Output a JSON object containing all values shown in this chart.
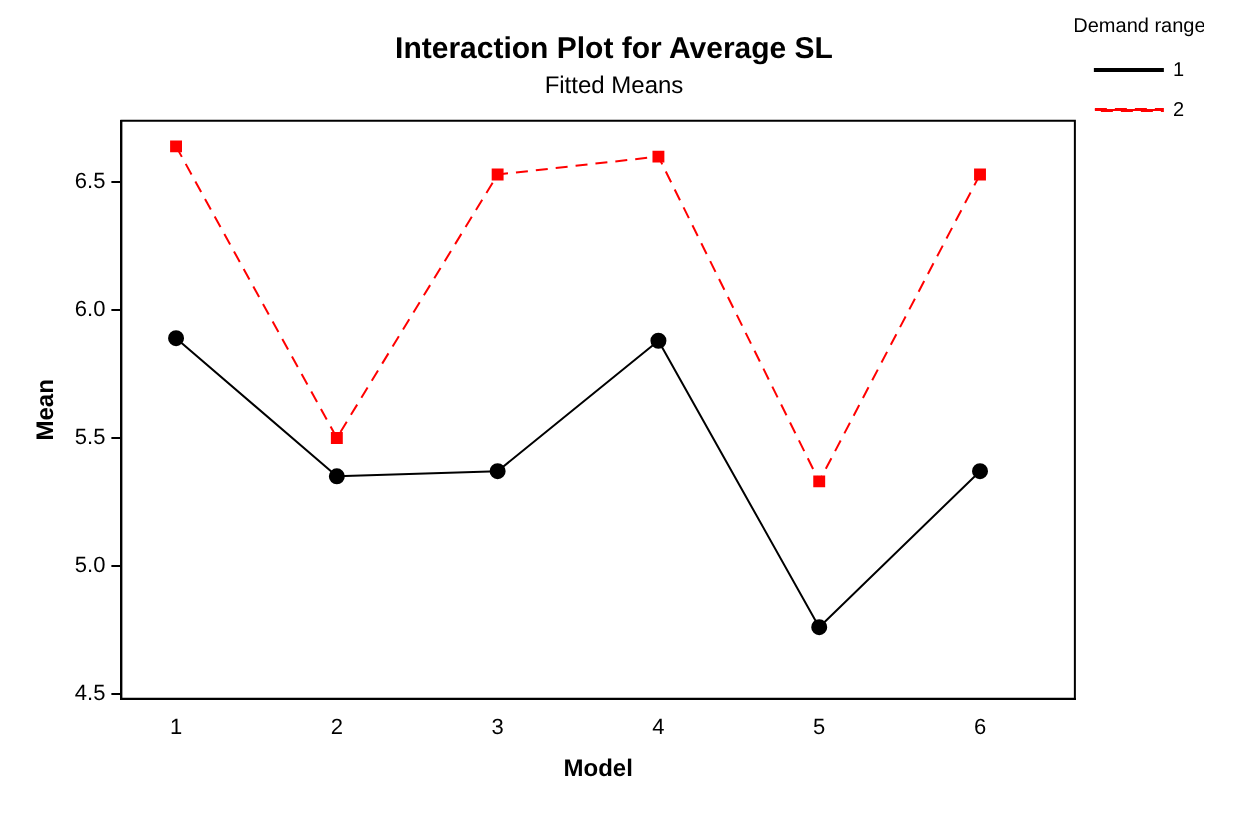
{
  "chart_data": {
    "type": "line",
    "title": "Interaction Plot for Average SL",
    "subtitle": "Fitted Means",
    "xlabel": "Model",
    "ylabel": "Mean",
    "legend_title": "Demand range",
    "x": [
      1,
      2,
      3,
      4,
      5,
      6
    ],
    "series": [
      {
        "name": "1",
        "color": "#000000",
        "marker": "circle",
        "line_style": "solid",
        "values": [
          5.89,
          5.35,
          5.37,
          5.88,
          4.76,
          5.37
        ]
      },
      {
        "name": "2",
        "color": "#ff0000",
        "marker": "square",
        "line_style": "dashed",
        "values": [
          6.64,
          5.5,
          6.53,
          6.6,
          5.33,
          6.53
        ]
      }
    ],
    "xlim": [
      0.66,
      6.59
    ],
    "xticks": [
      1,
      2,
      3,
      4,
      5,
      6
    ],
    "ylim": [
      4.48,
      6.74
    ],
    "yticks": [
      4.5,
      {
        "value": 5,
        "label": "5.0"
      },
      5.5,
      {
        "value": 6,
        "label": "6.0"
      },
      6.5
    ],
    "grid": false,
    "legend": "top right"
  }
}
